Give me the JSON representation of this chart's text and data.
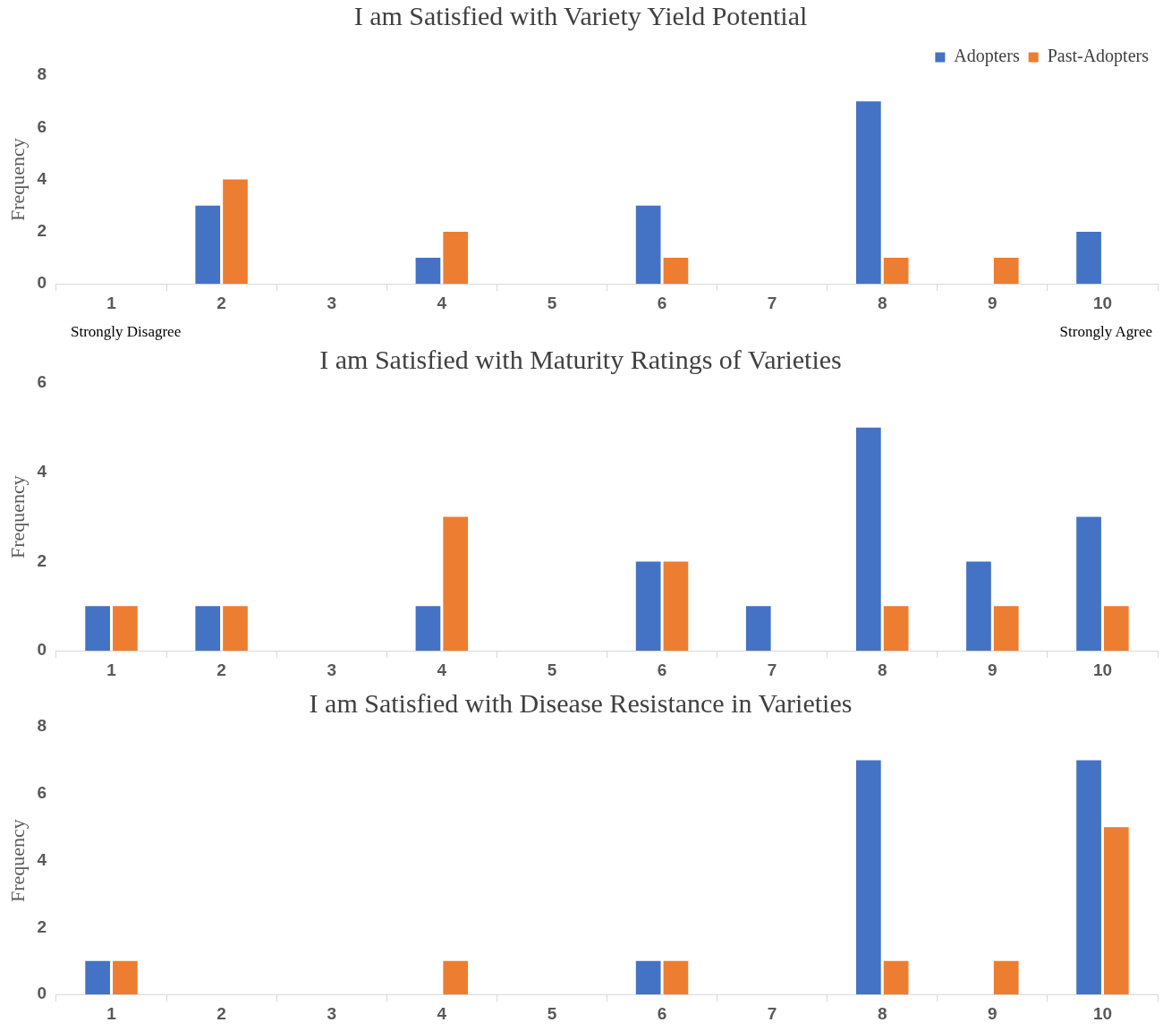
{
  "chart_data": [
    {
      "type": "bar",
      "title": "I am Satisfied with Variety Yield Potential",
      "ylabel": "Frequency",
      "categories": [
        "1",
        "2",
        "3",
        "4",
        "5",
        "6",
        "7",
        "8",
        "9",
        "10"
      ],
      "series": [
        {
          "name": "Adopters",
          "color": "#4472c4",
          "values": [
            0,
            3,
            0,
            1,
            0,
            3,
            0,
            7,
            0,
            2
          ]
        },
        {
          "name": "Past-Adopters",
          "color": "#ed7d31",
          "values": [
            0,
            4,
            0,
            2,
            0,
            1,
            0,
            1,
            1,
            0
          ]
        }
      ],
      "ylim": [
        0,
        8
      ],
      "yticks": [
        0,
        2,
        4,
        6,
        8
      ],
      "grid": false,
      "legend": "top right",
      "annotations": [
        "Strongly Disagree",
        "Strongly Agree"
      ]
    },
    {
      "type": "bar",
      "title": "I am Satisfied with Maturity Ratings of Varieties",
      "ylabel": "Frequency",
      "categories": [
        "1",
        "2",
        "3",
        "4",
        "5",
        "6",
        "7",
        "8",
        "9",
        "10"
      ],
      "series": [
        {
          "color": "#4472c4",
          "values": [
            1,
            1,
            0,
            1,
            0,
            2,
            1,
            5,
            2,
            3
          ]
        },
        {
          "color": "#ed7d31",
          "values": [
            1,
            1,
            0,
            3,
            0,
            2,
            0,
            1,
            1,
            1
          ]
        }
      ],
      "ylim": [
        0,
        6
      ],
      "yticks": [
        0,
        2,
        4,
        6
      ],
      "grid": false
    },
    {
      "type": "bar",
      "title": "I am Satisfied with Disease Resistance in Varieties",
      "ylabel": "Frequency",
      "categories": [
        "1",
        "2",
        "3",
        "4",
        "5",
        "6",
        "7",
        "8",
        "9",
        "10"
      ],
      "series": [
        {
          "color": "#4472c4",
          "values": [
            1,
            0,
            0,
            0,
            0,
            1,
            0,
            7,
            0,
            7
          ]
        },
        {
          "color": "#ed7d31",
          "values": [
            1,
            0,
            0,
            1,
            0,
            1,
            0,
            1,
            1,
            5
          ]
        }
      ],
      "ylim": [
        0,
        8
      ],
      "yticks": [
        0,
        2,
        4,
        6,
        8
      ],
      "grid": false
    }
  ]
}
